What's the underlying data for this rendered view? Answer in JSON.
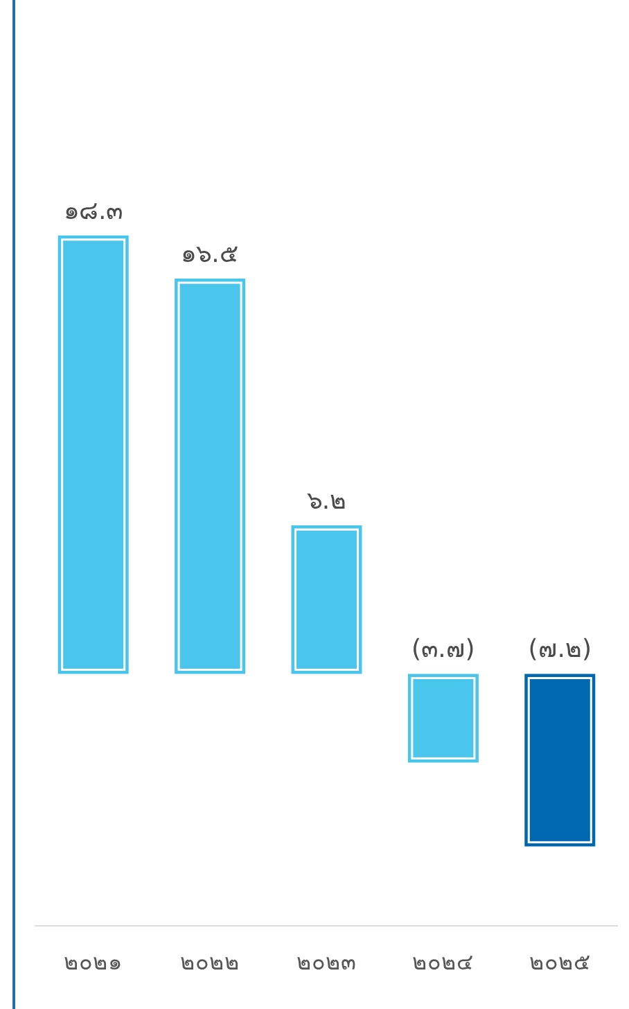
{
  "chart_data": {
    "type": "bar",
    "categories": [
      "๒๐๒๑",
      "๒๐๒๒",
      "๒๐๒๓",
      "๒๐๒๔",
      "๒๐๒๕"
    ],
    "values": [
      18.3,
      16.5,
      6.2,
      -3.7,
      -7.2
    ],
    "value_labels": [
      "๑๘.๓",
      "๑๖.๕",
      "๖.๒",
      "(๓.๗)",
      "(๗.๒)"
    ],
    "colors": [
      "#4ac6ed",
      "#4ac6ed",
      "#4ac6ed",
      "#4ac6ed",
      "#0068b1"
    ],
    "grid": false,
    "legend": false
  }
}
